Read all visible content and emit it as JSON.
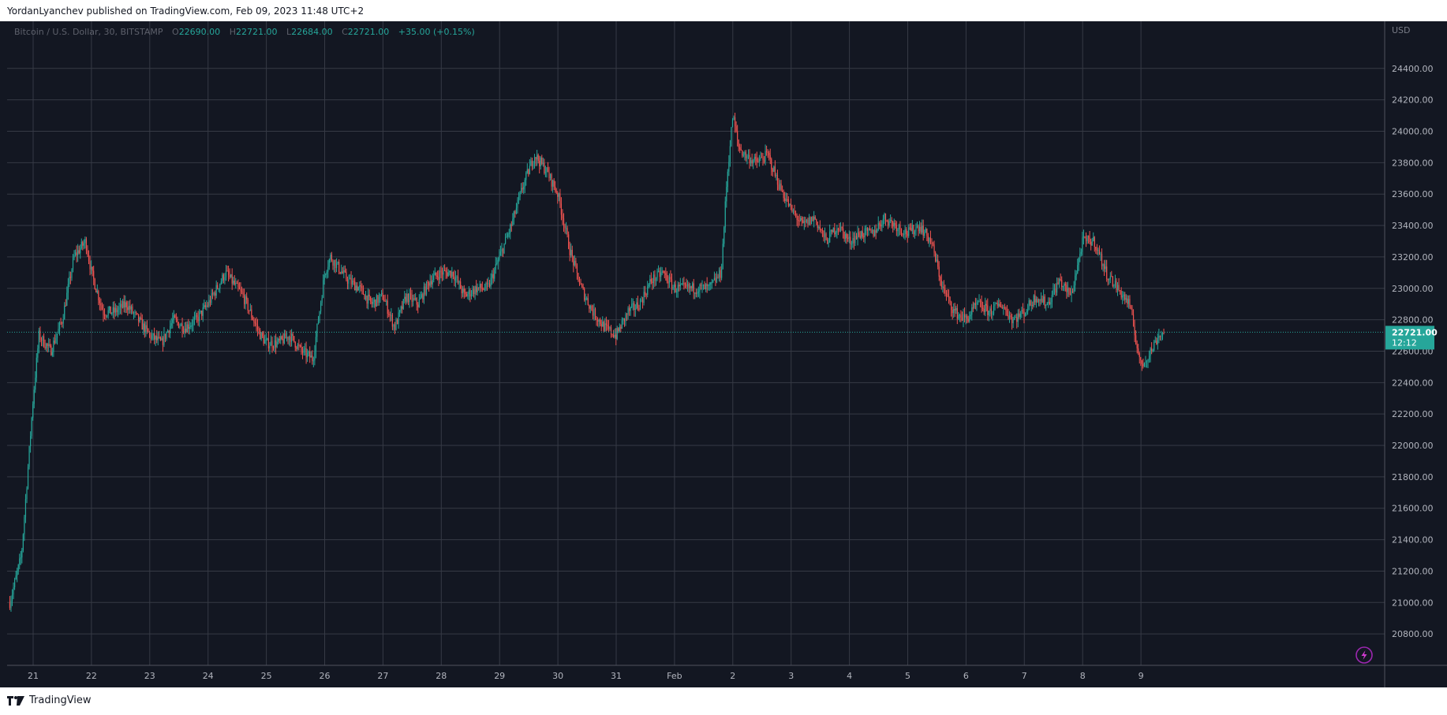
{
  "header": {
    "publish_line": "YordanLyanchev published on TradingView.com, Feb 09, 2023 11:48 UTC+2"
  },
  "legend": {
    "symbol": "Bitcoin / U.S. Dollar, 30, BITSTAMP",
    "o_label": "O",
    "o": "22690.00",
    "h_label": "H",
    "h": "22721.00",
    "l_label": "L",
    "l": "22684.00",
    "c_label": "C",
    "c": "22721.00",
    "change": "+35.00 (+0.15%)"
  },
  "axis": {
    "currency": "USD"
  },
  "price_badge": {
    "price": "22721.00",
    "countdown": "12:12"
  },
  "footer": {
    "brand": "TradingView"
  },
  "colors": {
    "bg": "#131722",
    "grid": "#363a45",
    "up": "#26a69a",
    "down": "#ef5350",
    "axis_text": "#b2b5be",
    "badge": "#26a69a"
  },
  "chart_data": {
    "type": "line",
    "style": "candlestick",
    "title": "Bitcoin / U.S. Dollar, 30, BITSTAMP",
    "ylim": [
      20600,
      24700
    ],
    "last_price": 22721,
    "y_ticks": [
      20800,
      21000,
      21200,
      21400,
      21600,
      21800,
      22000,
      22200,
      22400,
      22600,
      22800,
      23000,
      23200,
      23400,
      23600,
      23800,
      24000,
      24200,
      24400
    ],
    "x_ticks": [
      "21",
      "22",
      "23",
      "24",
      "25",
      "26",
      "27",
      "28",
      "29",
      "30",
      "31",
      "Feb",
      "2",
      "3",
      "4",
      "5",
      "6",
      "7",
      "8",
      "9"
    ],
    "x_tick_index": [
      0,
      1,
      2,
      3,
      4,
      5,
      6,
      7,
      8,
      9,
      10,
      11,
      12,
      13,
      14,
      15,
      16,
      17,
      18,
      19
    ],
    "x": [
      -0.4,
      -0.3,
      -0.2,
      -0.1,
      0.0,
      0.1,
      0.3,
      0.5,
      0.7,
      0.9,
      1.0,
      1.2,
      1.4,
      1.6,
      1.8,
      2.0,
      2.2,
      2.4,
      2.6,
      2.8,
      3.0,
      3.3,
      3.6,
      3.9,
      4.0,
      4.2,
      4.4,
      4.6,
      4.8,
      5.0,
      5.1,
      5.2,
      5.4,
      5.6,
      5.8,
      6.0,
      6.2,
      6.4,
      6.6,
      6.8,
      7.0,
      7.2,
      7.4,
      7.6,
      7.8,
      8.0,
      8.2,
      8.4,
      8.6,
      8.8,
      9.0,
      9.2,
      9.4,
      9.6,
      9.8,
      10.0,
      10.2,
      10.4,
      10.6,
      10.8,
      11.0,
      11.3,
      11.6,
      11.8,
      11.9,
      12.0,
      12.1,
      12.2,
      12.4,
      12.6,
      12.8,
      13.0,
      13.2,
      13.4,
      13.6,
      13.8,
      14.0,
      14.2,
      14.4,
      14.6,
      14.8,
      15.0,
      15.2,
      15.4,
      15.6,
      15.8,
      16.0,
      16.2,
      16.4,
      16.6,
      16.8,
      17.0,
      17.2,
      17.4,
      17.6,
      17.8,
      18.0,
      18.2,
      18.4,
      18.6,
      18.8,
      19.0,
      19.2,
      19.3,
      19.4
    ],
    "y": [
      21000,
      21150,
      21300,
      21800,
      22300,
      22700,
      22600,
      22800,
      23200,
      23300,
      23100,
      22850,
      22850,
      22900,
      22800,
      22700,
      22650,
      22800,
      22750,
      22800,
      22900,
      23100,
      22950,
      22700,
      22650,
      22650,
      22700,
      22600,
      22550,
      23100,
      23200,
      23150,
      23050,
      23000,
      22900,
      22950,
      22750,
      22950,
      22900,
      23050,
      23100,
      23100,
      22950,
      23000,
      23000,
      23200,
      23400,
      23650,
      23850,
      23750,
      23600,
      23250,
      23000,
      22850,
      22750,
      22700,
      22850,
      22900,
      23050,
      23100,
      23000,
      23000,
      23000,
      23100,
      23700,
      24100,
      23900,
      23850,
      23800,
      23850,
      23650,
      23500,
      23400,
      23450,
      23300,
      23400,
      23300,
      23350,
      23350,
      23450,
      23400,
      23350,
      23400,
      23300,
      23000,
      22850,
      22800,
      22900,
      22850,
      22900,
      22800,
      22850,
      22950,
      22900,
      23050,
      22950,
      23300,
      23300,
      23100,
      23000,
      22900,
      22500,
      22620,
      22700,
      22721
    ]
  }
}
